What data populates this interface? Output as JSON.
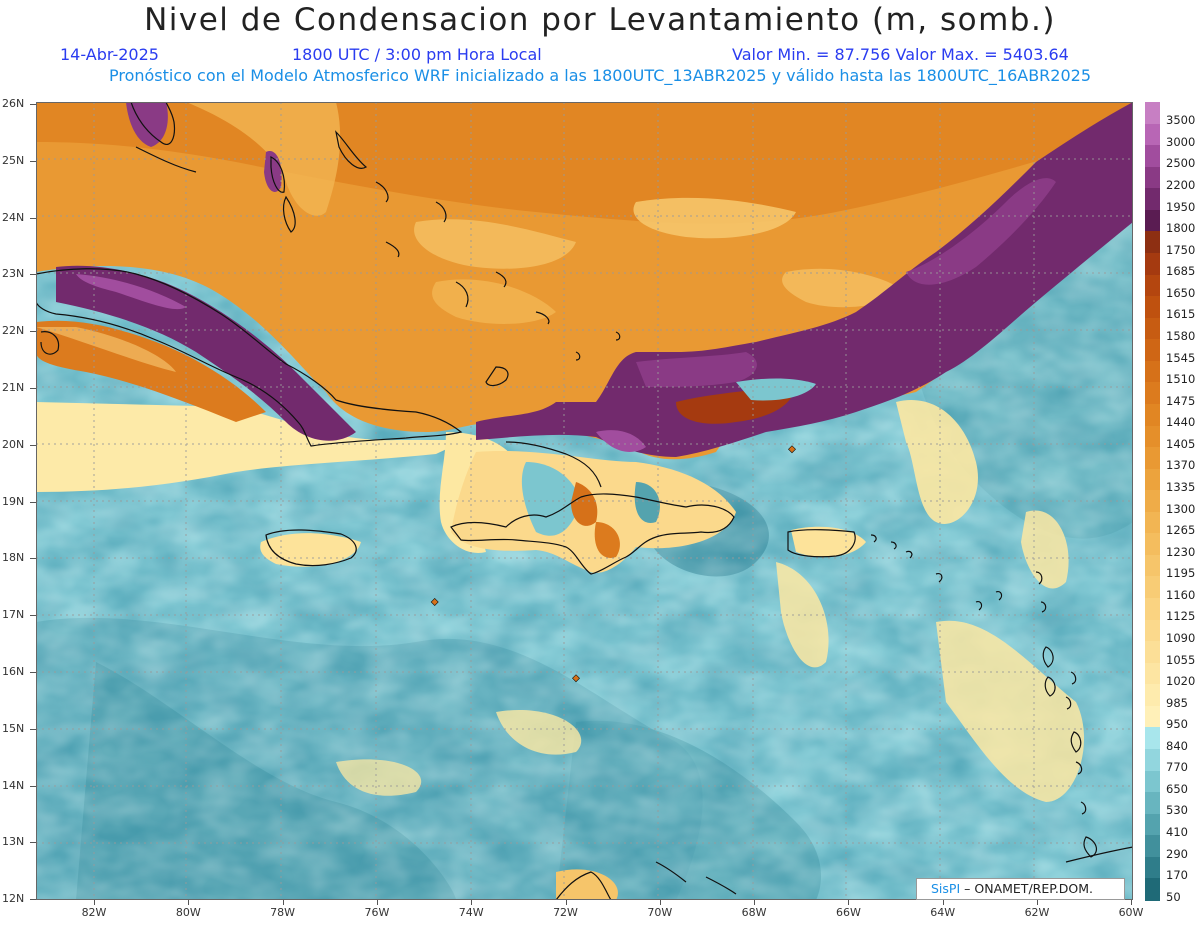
{
  "title": "Nivel de Condensacion por Levantamiento (m, somb.)",
  "date": "14-Abr-2025",
  "time": "1800 UTC / 3:00 pm Hora Local",
  "minmax": "Valor Min. = 87.756  Valor Max. = 5403.64",
  "forecast": "Pronóstico con el Modelo Atmosferico WRF inicializado a las 1800UTC_13ABR2025 y válido hasta las  1800UTC_16ABR2025",
  "lat_labels": [
    "26N",
    "25N",
    "24N",
    "23N",
    "22N",
    "21N",
    "20N",
    "19N",
    "18N",
    "17N",
    "16N",
    "15N",
    "14N",
    "13N",
    "12N"
  ],
  "lon_labels": [
    "82W",
    "80W",
    "78W",
    "76W",
    "74W",
    "72W",
    "70W",
    "68W",
    "66W",
    "64W",
    "62W",
    "60W"
  ],
  "colorbar": {
    "labels": [
      "3500",
      "3000",
      "2500",
      "2200",
      "1950",
      "1800",
      "1750",
      "1685",
      "1650",
      "1615",
      "1580",
      "1545",
      "1510",
      "1475",
      "1440",
      "1405",
      "1370",
      "1335",
      "1300",
      "1265",
      "1230",
      "1195",
      "1160",
      "1125",
      "1090",
      "1055",
      "1020",
      "985",
      "950",
      "840",
      "770",
      "650",
      "530",
      "410",
      "290",
      "170",
      "50"
    ],
    "colors": [
      "#c77fc3",
      "#b866b5",
      "#a14d9e",
      "#8a3a85",
      "#722a6d",
      "#5a1c52",
      "#8d2f12",
      "#a53a10",
      "#b4460f",
      "#bf510f",
      "#c75c12",
      "#cf6615",
      "#d67119",
      "#dc7b1e",
      "#e18623",
      "#e58f2a",
      "#e99933",
      "#eca33d",
      "#efac48",
      "#f2b553",
      "#f4bd5e",
      "#f6c56a",
      "#f8cc75",
      "#fad381",
      "#fbd98c",
      "#fcdf97",
      "#fde5a2",
      "#feebad",
      "#fff0b8",
      "#a8e6ec",
      "#92d6de",
      "#7cc6cf",
      "#68b5bf",
      "#54a3ae",
      "#41909c",
      "#2f7d8a",
      "#1f6a77"
    ]
  },
  "credit": {
    "logo": "SisPI",
    "text": "– ONAMET/REP.DOM."
  }
}
